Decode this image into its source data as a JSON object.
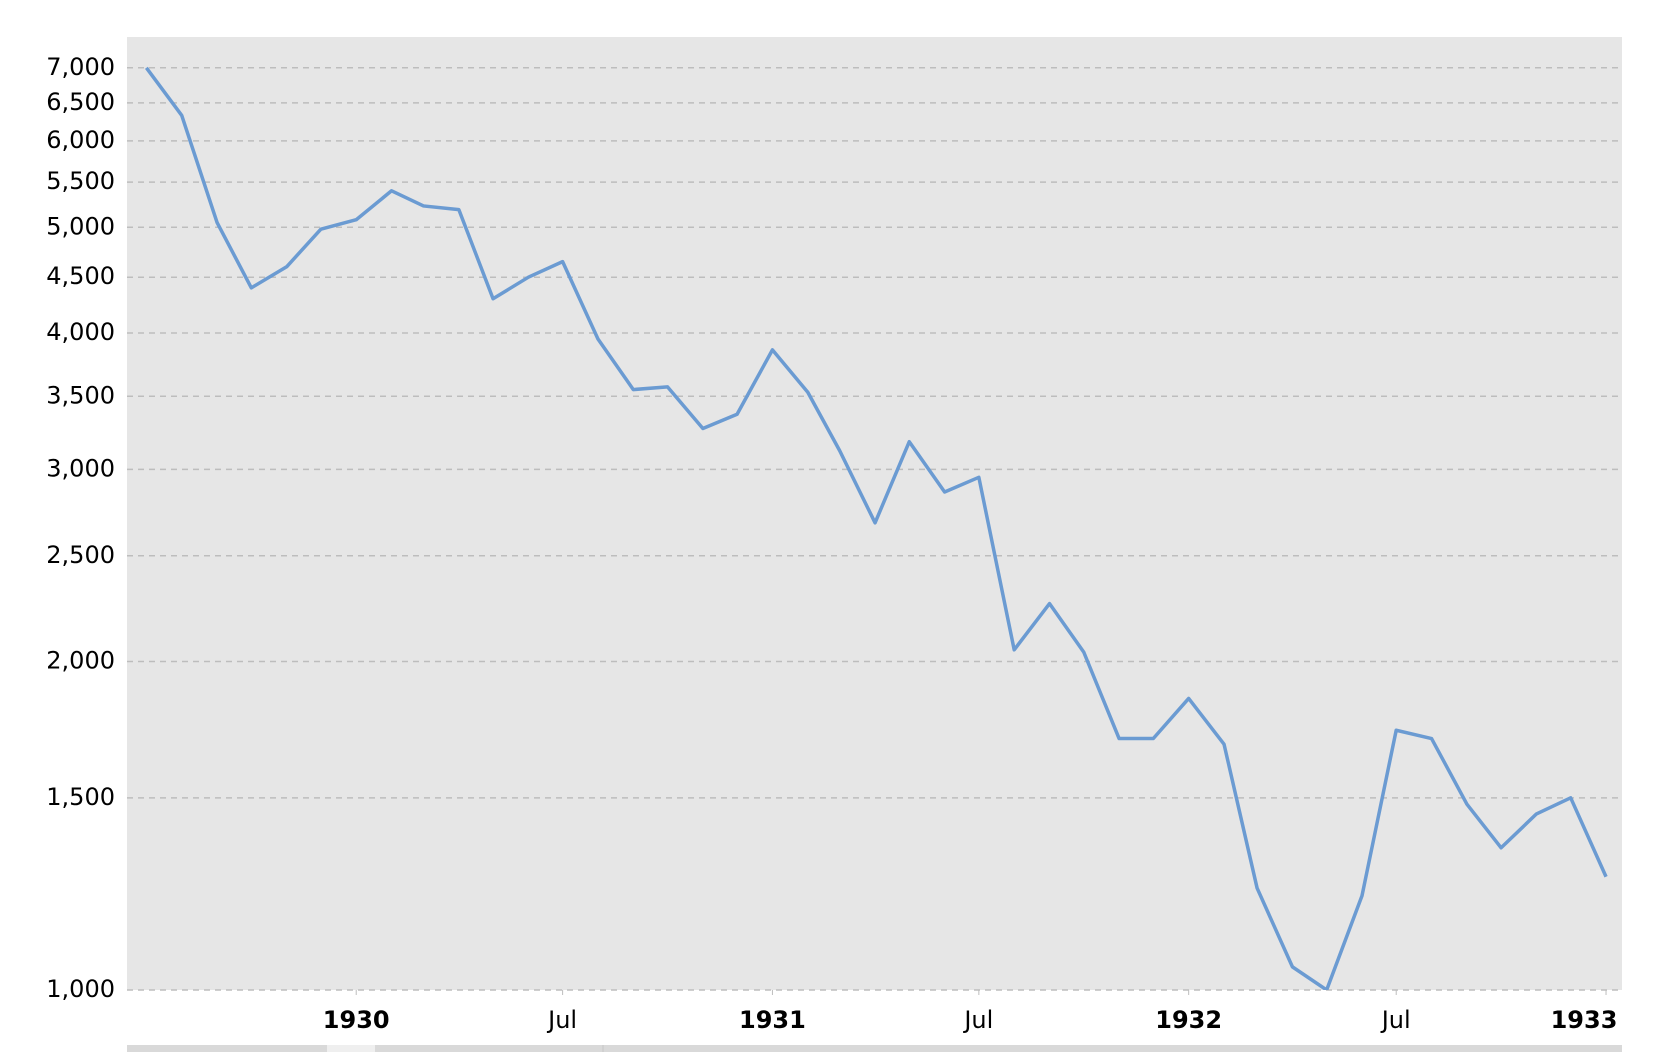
{
  "chart_data": {
    "type": "line",
    "x": [
      "1929-07",
      "1929-08",
      "1929-09",
      "1929-10",
      "1929-11",
      "1929-12",
      "1930-01",
      "1930-02",
      "1930-03",
      "1930-04",
      "1930-05",
      "1930-06",
      "1930-07",
      "1930-08",
      "1930-09",
      "1930-10",
      "1930-11",
      "1930-12",
      "1931-01",
      "1931-02",
      "1931-03",
      "1931-04",
      "1931-05",
      "1931-06",
      "1931-07",
      "1931-08",
      "1931-09",
      "1931-10",
      "1931-11",
      "1931-12",
      "1932-01",
      "1932-02",
      "1932-03",
      "1932-04",
      "1932-05",
      "1932-06",
      "1932-07",
      "1932-08",
      "1932-09",
      "1932-10",
      "1932-11",
      "1932-12",
      "1933-01"
    ],
    "series": [
      {
        "name": null,
        "color": "#6b9bd2",
        "values": [
          7000,
          6330,
          5050,
          4400,
          4600,
          4980,
          5080,
          5400,
          5230,
          5190,
          4300,
          4500,
          4650,
          3950,
          3550,
          3570,
          3270,
          3370,
          3860,
          3530,
          3120,
          2680,
          3180,
          2860,
          2950,
          2050,
          2260,
          2040,
          1700,
          1700,
          1850,
          1680,
          1240,
          1050,
          1000,
          1220,
          1730,
          1700,
          1480,
          1350,
          1450,
          1500,
          1270
        ]
      }
    ],
    "xlim": [
      "1929-06-14",
      "1933-01-15"
    ],
    "xticks": [
      {
        "value": "1930-01",
        "label": "1930"
      },
      {
        "value": "1930-07",
        "label": "Jul"
      },
      {
        "value": "1931-01",
        "label": "1931"
      },
      {
        "value": "1931-07",
        "label": "Jul"
      },
      {
        "value": "1932-01",
        "label": "1932"
      },
      {
        "value": "1932-07",
        "label": "Jul"
      },
      {
        "value": "1933-01",
        "label": "1933"
      }
    ],
    "ylim": [
      1000,
      7470
    ],
    "yticks": [
      {
        "value": 1000,
        "label": "1,000"
      },
      {
        "value": 1500,
        "label": "1,500"
      },
      {
        "value": 2000,
        "label": "2,000"
      },
      {
        "value": 2500,
        "label": "2,500"
      },
      {
        "value": 3000,
        "label": "3,000"
      },
      {
        "value": 3500,
        "label": "3,500"
      },
      {
        "value": 4000,
        "label": "4,000"
      },
      {
        "value": 4500,
        "label": "4,500"
      },
      {
        "value": 5000,
        "label": "5,000"
      },
      {
        "value": 5500,
        "label": "5,500"
      },
      {
        "value": 6000,
        "label": "6,000"
      },
      {
        "value": 6500,
        "label": "6,500"
      },
      {
        "value": 7000,
        "label": "7,000"
      }
    ],
    "log_y": true,
    "grid": true,
    "background": "#e6e6e6"
  }
}
